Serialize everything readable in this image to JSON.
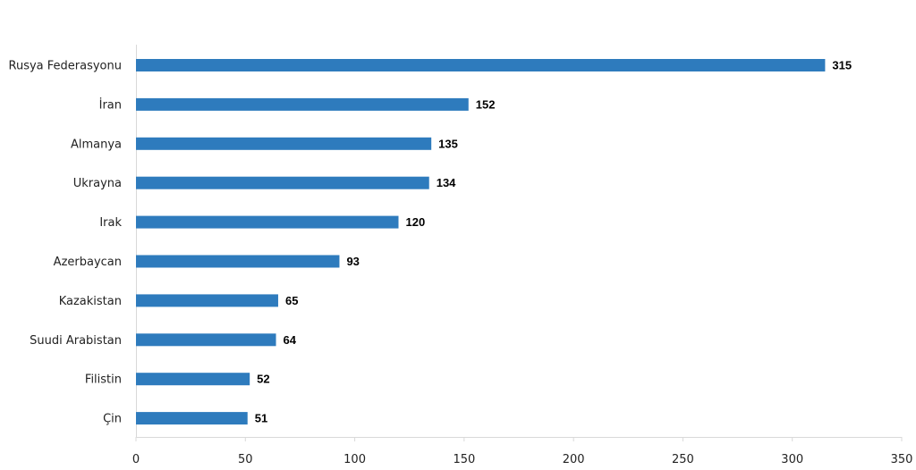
{
  "chart_data": {
    "type": "bar",
    "orientation": "horizontal",
    "categories": [
      "Rusya Federasyonu",
      "İran",
      "Almanya",
      "Ukrayna",
      "Irak",
      "Azerbaycan",
      "Kazakistan",
      "Suudi Arabistan",
      "Filistin",
      "Çin"
    ],
    "values": [
      315,
      152,
      135,
      134,
      120,
      93,
      65,
      64,
      52,
      51
    ],
    "data_labels": [
      "315",
      "152",
      "135",
      "134",
      "120",
      "93",
      "65",
      "64",
      "52",
      "51"
    ],
    "xlim": [
      0,
      350
    ],
    "x_ticks": [
      0,
      50,
      100,
      150,
      200,
      250,
      300,
      350
    ],
    "x_tick_labels": [
      "0",
      "50",
      "100",
      "150",
      "200",
      "250",
      "300",
      "350"
    ],
    "grid": false,
    "legend": "none",
    "bar_color": "#2e7bbd"
  }
}
